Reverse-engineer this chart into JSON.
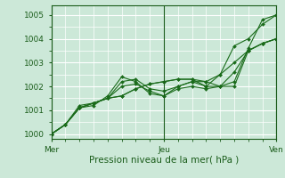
{
  "xlabel": "Pression niveau de la mer( hPa )",
  "bg_color": "#cce8d8",
  "plot_bg_color": "#cce8d8",
  "grid_color": "#ffffff",
  "line_color": "#1a6b1a",
  "xlim": [
    0,
    48
  ],
  "ylim": [
    999.8,
    1005.4
  ],
  "yticks": [
    1000,
    1001,
    1002,
    1003,
    1004,
    1005
  ],
  "xtick_positions": [
    0,
    24,
    48
  ],
  "xtick_labels": [
    "Mer",
    "Jeu",
    "Ven"
  ],
  "series": [
    {
      "x": [
        0,
        3,
        6,
        9,
        12,
        15,
        18,
        21,
        24,
        27,
        30,
        33,
        36,
        39,
        42,
        45,
        48
      ],
      "y": [
        1000,
        1000.4,
        1001.1,
        1001.3,
        1001.5,
        1001.6,
        1001.9,
        1002.1,
        1002.2,
        1002.3,
        1002.3,
        1002.2,
        1002.5,
        1003.0,
        1003.5,
        1003.8,
        1004.0
      ]
    },
    {
      "x": [
        0,
        3,
        6,
        9,
        12,
        15,
        18,
        21,
        24,
        27,
        30,
        33,
        36,
        39,
        42,
        45,
        48
      ],
      "y": [
        1000,
        1000.4,
        1001.1,
        1001.3,
        1001.5,
        1001.6,
        1001.9,
        1002.1,
        1002.2,
        1002.3,
        1002.3,
        1002.0,
        1002.0,
        1002.6,
        1003.5,
        1003.8,
        1004.0
      ]
    },
    {
      "x": [
        0,
        3,
        6,
        9,
        12,
        15,
        18,
        21,
        24,
        27,
        30,
        33,
        36,
        39,
        42,
        45,
        48
      ],
      "y": [
        1000,
        1000.4,
        1001.2,
        1001.3,
        1001.5,
        1002.2,
        1002.3,
        1001.9,
        1001.8,
        1002.0,
        1002.2,
        1002.2,
        1002.0,
        1002.0,
        1003.5,
        1003.8,
        1004.0
      ]
    },
    {
      "x": [
        0,
        3,
        6,
        9,
        12,
        15,
        18,
        21,
        24,
        27,
        30,
        33,
        36,
        39,
        42,
        45,
        48
      ],
      "y": [
        1000,
        1000.4,
        1001.1,
        1001.2,
        1001.6,
        1002.4,
        1002.2,
        1001.7,
        1001.6,
        1002.0,
        1002.2,
        1002.0,
        1002.5,
        1003.7,
        1004.0,
        1004.6,
        1005.0
      ]
    },
    {
      "x": [
        0,
        3,
        6,
        9,
        12,
        15,
        18,
        21,
        24,
        27,
        30,
        33,
        36,
        39,
        42,
        45,
        48
      ],
      "y": [
        1000,
        1000.4,
        1001.1,
        1001.3,
        1001.5,
        1002.0,
        1002.1,
        1001.8,
        1001.6,
        1001.9,
        1002.0,
        1001.9,
        1002.0,
        1002.2,
        1003.6,
        1004.8,
        1005.0
      ]
    }
  ]
}
